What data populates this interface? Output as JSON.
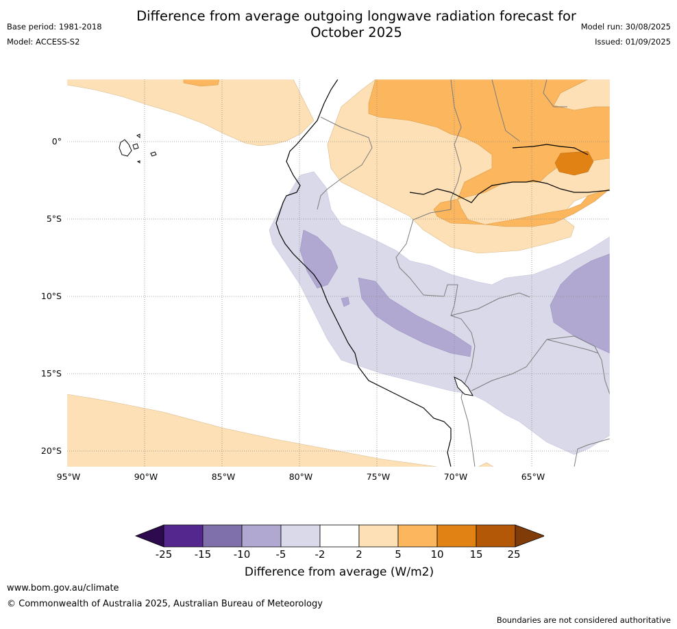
{
  "title_line1": "Difference from average outgoing longwave radiation forecast for",
  "title_line2": "October 2025",
  "base_period": "Base period: 1981-2018",
  "model": "Model: ACCESS-S2",
  "model_run": "Model run: 30/08/2025",
  "issued": "Issued: 01/09/2025",
  "lat_labels": [
    "0°",
    "5°S",
    "10°S",
    "15°S",
    "20°S"
  ],
  "lon_labels": [
    "95°W",
    "90°W",
    "85°W",
    "80°W",
    "75°W",
    "70°W",
    "65°W"
  ],
  "colorbar": {
    "ticks": [
      "-25",
      "-15",
      "-10",
      "-5",
      "-2",
      "2",
      "5",
      "10",
      "15",
      "25"
    ],
    "colors": [
      "#2d0a4e",
      "#54278f",
      "#7f6fab",
      "#b0a8d0",
      "#d9d9ea",
      "#ffffff",
      "#fde0b5",
      "#fbb65e",
      "#e08214",
      "#b35806",
      "#7f3b08"
    ],
    "title": "Difference from average (W/m2)"
  },
  "footer": {
    "url": "www.bom.gov.au/climate",
    "copyright": "© Commonwealth of Australia 2025, Australian Bureau of Meteorology",
    "disclaimer": "Boundaries are not considered authoritative"
  }
}
